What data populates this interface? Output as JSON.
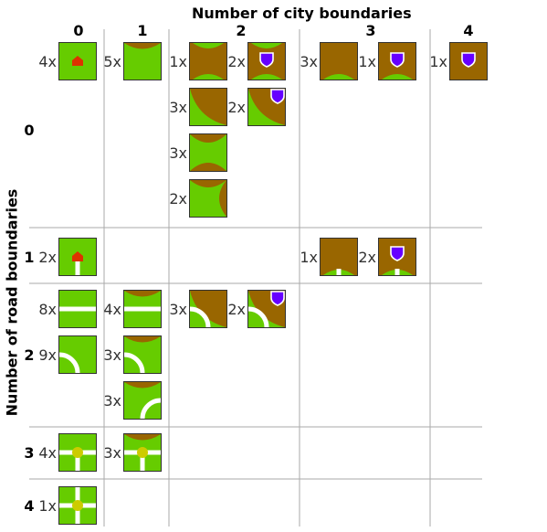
{
  "title_x": "Number of city boundaries",
  "title_y": "Number of road boundaries",
  "col_headers": [
    "0",
    "1",
    "2",
    "3",
    "4"
  ],
  "row_headers": [
    "0",
    "1",
    "2",
    "3",
    "4"
  ],
  "colors": {
    "grass": "#66cc00",
    "city": "#996600",
    "road": "#ffffff",
    "shield": "#6600ff",
    "house": "#dd3300",
    "crossing": "#cccc00",
    "grid": "#aaaaaa"
  },
  "tiles": [
    {
      "count": "4x",
      "city_boundaries": 0,
      "road_boundaries": 0,
      "kind": "monastery"
    },
    {
      "count": "5x",
      "city_boundaries": 1,
      "road_boundaries": 0,
      "kind": "city-edge"
    },
    {
      "count": "1x",
      "city_boundaries": 2,
      "road_boundaries": 0,
      "kind": "city-tunnel"
    },
    {
      "count": "2x",
      "city_boundaries": 2,
      "road_boundaries": 0,
      "kind": "city-tunnel-shield"
    },
    {
      "count": "3x",
      "city_boundaries": 2,
      "road_boundaries": 0,
      "kind": "city-corner"
    },
    {
      "count": "2x",
      "city_boundaries": 2,
      "road_boundaries": 0,
      "kind": "city-corner-shield"
    },
    {
      "count": "3x",
      "city_boundaries": 2,
      "road_boundaries": 0,
      "kind": "city-opposite-edges"
    },
    {
      "count": "2x",
      "city_boundaries": 2,
      "road_boundaries": 0,
      "kind": "city-adjacent-edges"
    },
    {
      "count": "3x",
      "city_boundaries": 3,
      "road_boundaries": 0,
      "kind": "city-three"
    },
    {
      "count": "1x",
      "city_boundaries": 3,
      "road_boundaries": 0,
      "kind": "city-three-shield"
    },
    {
      "count": "1x",
      "city_boundaries": 4,
      "road_boundaries": 0,
      "kind": "city-full-shield"
    },
    {
      "count": "2x",
      "city_boundaries": 0,
      "road_boundaries": 1,
      "kind": "monastery-road"
    },
    {
      "count": "1x",
      "city_boundaries": 3,
      "road_boundaries": 1,
      "kind": "city-three-road"
    },
    {
      "count": "2x",
      "city_boundaries": 3,
      "road_boundaries": 1,
      "kind": "city-three-road-shield"
    },
    {
      "count": "8x",
      "city_boundaries": 0,
      "road_boundaries": 2,
      "kind": "road-straight"
    },
    {
      "count": "9x",
      "city_boundaries": 0,
      "road_boundaries": 2,
      "kind": "road-curve"
    },
    {
      "count": "4x",
      "city_boundaries": 1,
      "road_boundaries": 2,
      "kind": "city-edge-road-straight"
    },
    {
      "count": "3x",
      "city_boundaries": 1,
      "road_boundaries": 2,
      "kind": "city-edge-road-curve-left"
    },
    {
      "count": "3x",
      "city_boundaries": 1,
      "road_boundaries": 2,
      "kind": "city-edge-road-curve-right"
    },
    {
      "count": "3x",
      "city_boundaries": 2,
      "road_boundaries": 2,
      "kind": "city-corner-road-curve"
    },
    {
      "count": "2x",
      "city_boundaries": 2,
      "road_boundaries": 2,
      "kind": "city-corner-road-curve-shield"
    },
    {
      "count": "4x",
      "city_boundaries": 0,
      "road_boundaries": 3,
      "kind": "road-junction-3"
    },
    {
      "count": "3x",
      "city_boundaries": 1,
      "road_boundaries": 3,
      "kind": "city-edge-road-junction-3"
    },
    {
      "count": "1x",
      "city_boundaries": 0,
      "road_boundaries": 4,
      "kind": "road-junction-4"
    }
  ]
}
